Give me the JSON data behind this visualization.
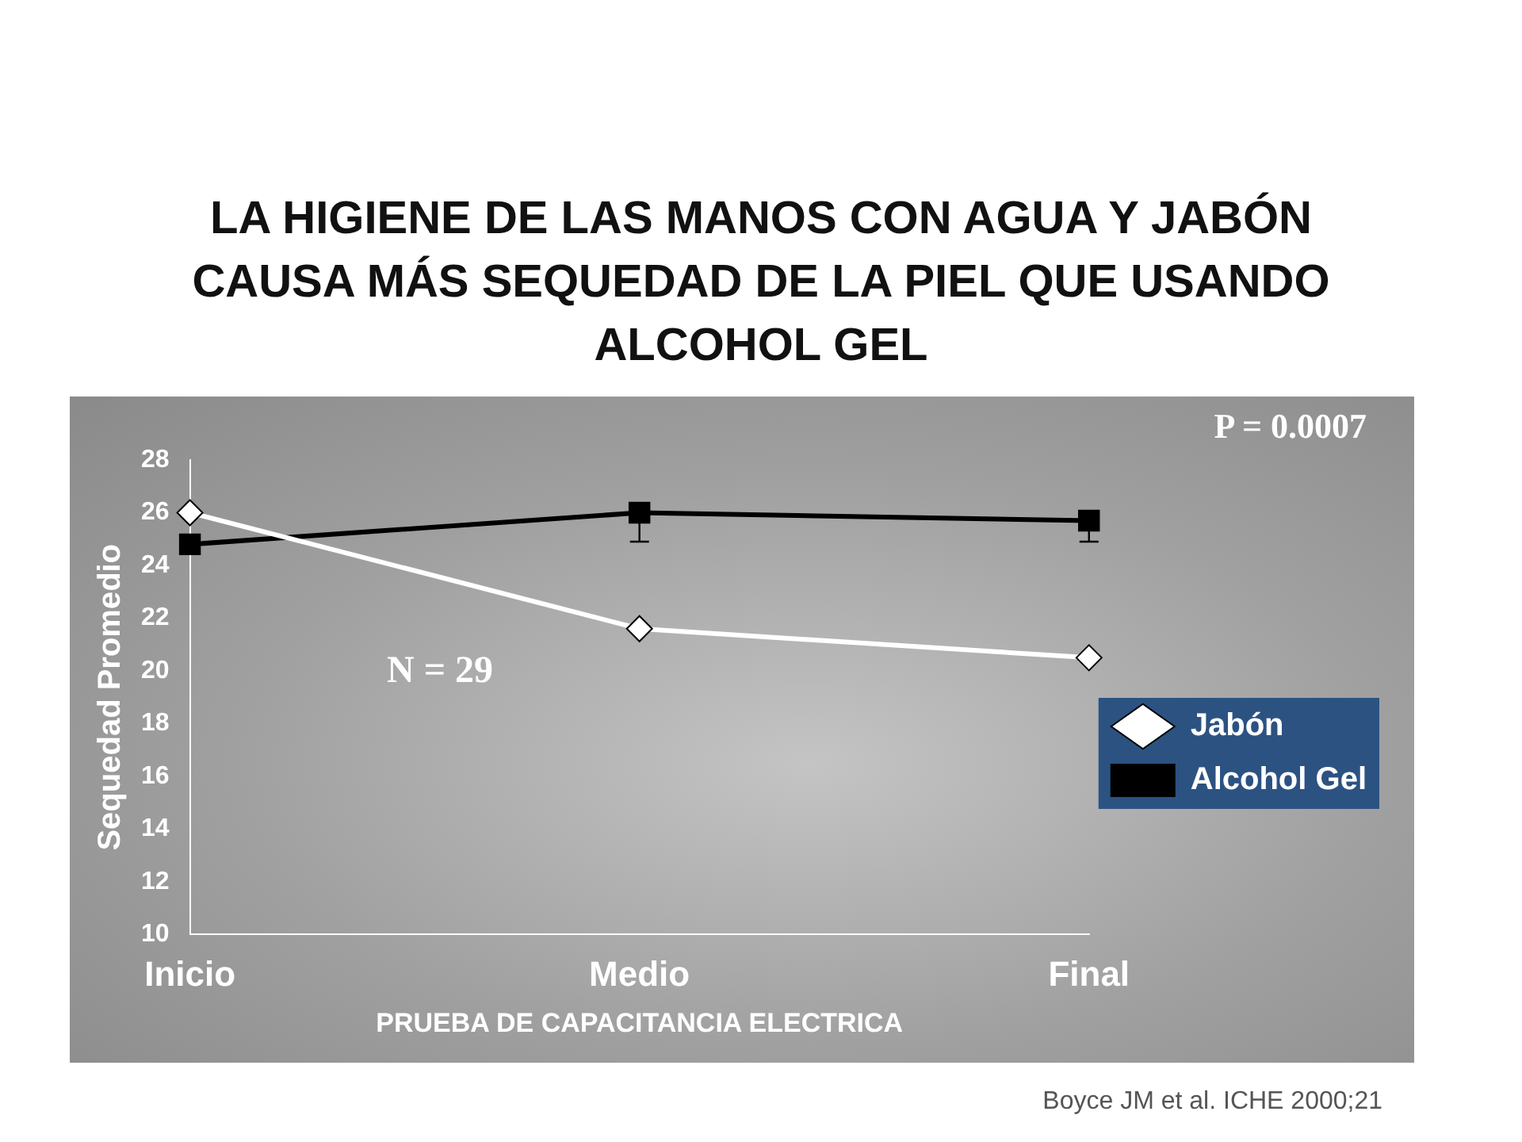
{
  "chart_data": {
    "type": "line",
    "title": "LA HIGIENE DE LAS MANOS CON AGUA Y JABÓN CAUSA MÁS SEQUEDAD DE LA PIEL QUE USANDO ALCOHOL GEL",
    "xlabel": "PRUEBA DE CAPACITANCIA ELECTRICA",
    "ylabel": "Sequedad Promedio",
    "categories": [
      "Inicio",
      "Medio",
      "Final"
    ],
    "series": [
      {
        "name": "Jabón",
        "color": "#ffffff",
        "marker": "diamond",
        "values": [
          26,
          21.6,
          20.5
        ]
      },
      {
        "name": "Alcohol Gel",
        "color": "#000000",
        "marker": "square",
        "values": [
          24.8,
          26,
          25.7
        ],
        "errors": [
          null,
          [
            24.9,
            26
          ],
          [
            24.9,
            25.7
          ]
        ]
      }
    ],
    "ylim": [
      10,
      28
    ],
    "yticks": [
      10,
      12,
      14,
      16,
      18,
      20,
      22,
      24,
      26,
      28
    ],
    "grid": false,
    "legend": "right",
    "line_style": "solid",
    "annotations": [
      "P = 0.0007",
      "N = 29",
      "Boyce JM et al.  ICHE 2000;21"
    ]
  }
}
